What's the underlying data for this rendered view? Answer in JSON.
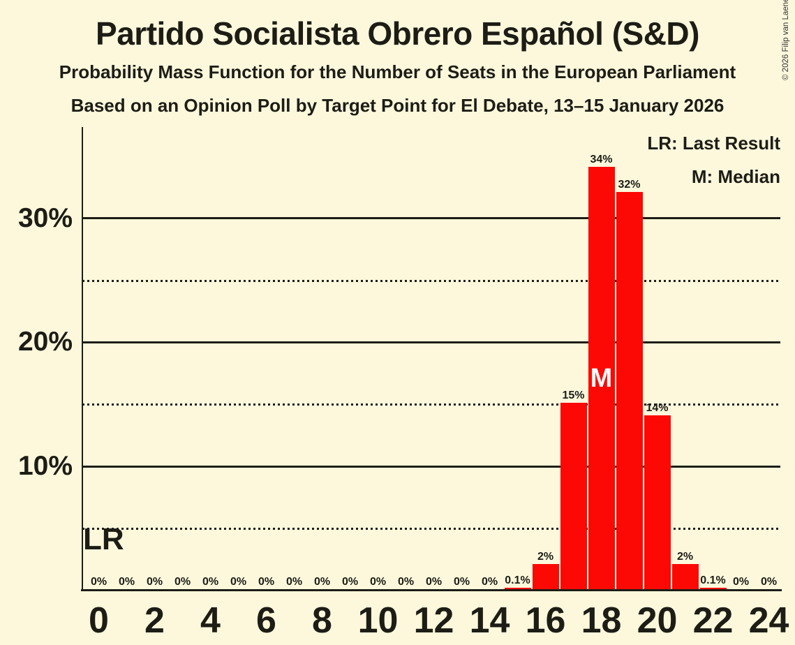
{
  "header": {
    "title": "Partido Socialista Obrero Español (S&D)",
    "subtitle1": "Probability Mass Function for the Number of Seats in the European Parliament",
    "subtitle2": "Based on an Opinion Poll by Target Point for El Debate, 13–15 January 2026"
  },
  "copyright": "© 2026 Filip van Laenen",
  "legend": {
    "lr_line": "LR: Last Result",
    "m_line": "M: Median"
  },
  "colors": {
    "background": "#FDF8DC",
    "bar": "#FC0905",
    "text": "#1D1D16",
    "median_letter": "#FFFFFF"
  },
  "chart_data": {
    "type": "bar",
    "title": "Partido Socialista Obrero Español (S&D)",
    "subtitle": "Probability Mass Function for the Number of Seats in the European Parliament",
    "source_line": "Based on an Opinion Poll by Target Point for El Debate, 13–15 January 2026",
    "xlabel": "",
    "ylabel": "",
    "x": [
      0,
      1,
      2,
      3,
      4,
      5,
      6,
      7,
      8,
      9,
      10,
      11,
      12,
      13,
      14,
      15,
      16,
      17,
      18,
      19,
      20,
      21,
      22,
      23,
      24
    ],
    "values": [
      0,
      0,
      0,
      0,
      0,
      0,
      0,
      0,
      0,
      0,
      0,
      0,
      0,
      0,
      0,
      0.1,
      2,
      15,
      34,
      32,
      14,
      2,
      0.1,
      0,
      0
    ],
    "bar_labels": [
      "0%",
      "0%",
      "0%",
      "0%",
      "0%",
      "0%",
      "0%",
      "0%",
      "0%",
      "0%",
      "0%",
      "0%",
      "0%",
      "0%",
      "0%",
      "0.1%",
      "2%",
      "15%",
      "34%",
      "32%",
      "14%",
      "2%",
      "0.1%",
      "0%",
      "0%"
    ],
    "x_tick_labels": [
      "0",
      "2",
      "4",
      "6",
      "8",
      "10",
      "12",
      "14",
      "16",
      "18",
      "20",
      "22",
      "24"
    ],
    "x_tick_values": [
      0,
      2,
      4,
      6,
      8,
      10,
      12,
      14,
      16,
      18,
      20,
      22,
      24
    ],
    "y_tick_labels": [
      "30%",
      "20%",
      "10%"
    ],
    "y_tick_values": [
      30,
      20,
      10
    ],
    "solid_gridlines_pct": [
      30,
      20,
      10
    ],
    "dotted_gridlines_pct": [
      25,
      15,
      5
    ],
    "ylim": [
      0,
      37.3
    ],
    "grid": true,
    "legend_position": "top-right",
    "median_seat": 18,
    "median_label": "M",
    "last_result_label": "LR"
  }
}
